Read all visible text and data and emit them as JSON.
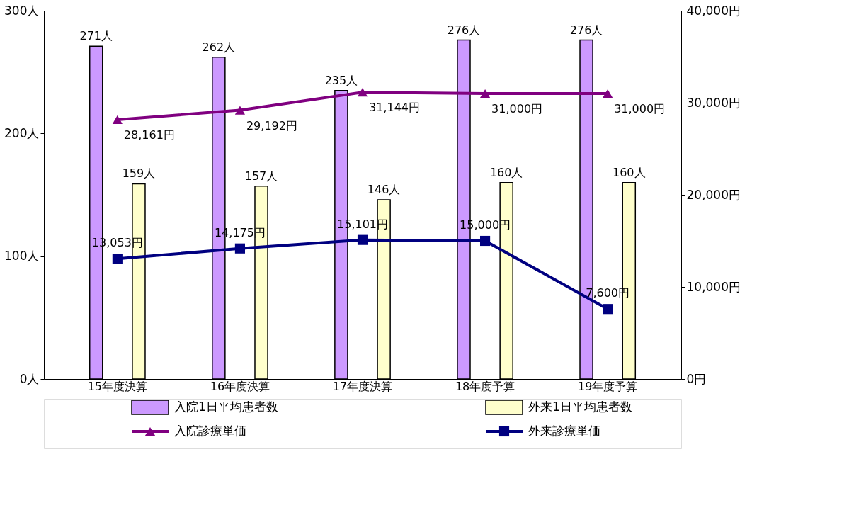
{
  "chart_data": {
    "type": "bar",
    "categories": [
      "15年度決算",
      "16年度決算",
      "17年度決算",
      "18年度予算",
      "19年度予算"
    ],
    "series": [
      {
        "name": "入院1日平均患者数",
        "color": "#cc99ff",
        "values": [
          271,
          262,
          235,
          276,
          276
        ],
        "value_labels": [
          "271人",
          "262人",
          "235人",
          "276人",
          "276人"
        ]
      },
      {
        "name": "外来1日平均患者数",
        "color": "#ffffcc",
        "values": [
          159,
          157,
          146,
          160,
          160
        ],
        "value_labels": [
          "159人",
          "157人",
          "146人",
          "160人",
          "160人"
        ]
      },
      {
        "name": "入院診療単価",
        "type": "line",
        "axis": "y2",
        "marker": "triangle",
        "color": "#800080",
        "values": [
          28161,
          29192,
          31144,
          31000,
          31000
        ],
        "value_labels": [
          "28,161円",
          "29,192円",
          "31,144円",
          "31,000円",
          "31,000円"
        ]
      },
      {
        "name": "外来診療単価",
        "type": "line",
        "axis": "y2",
        "marker": "square",
        "color": "#000080",
        "values": [
          13053,
          14175,
          15101,
          15000,
          7600
        ],
        "value_labels": [
          "13,053円",
          "14,175円",
          "15,101円",
          "15,000円",
          "7,600円"
        ]
      }
    ],
    "ylim": [
      0,
      300
    ],
    "yticks": [
      {
        "value": 0,
        "label": "0人"
      },
      {
        "value": 100,
        "label": "100人"
      },
      {
        "value": 200,
        "label": "200人"
      },
      {
        "value": 300,
        "label": "300人"
      }
    ],
    "y2lim": [
      0,
      40000
    ],
    "y2ticks": [
      {
        "value": 0,
        "label": "0円"
      },
      {
        "value": 10000,
        "label": "10,000円"
      },
      {
        "value": 20000,
        "label": "20,000円"
      },
      {
        "value": 30000,
        "label": "30,000円"
      },
      {
        "value": 40000,
        "label": "40,000円"
      }
    ],
    "grid": false,
    "legend": "bottom"
  }
}
